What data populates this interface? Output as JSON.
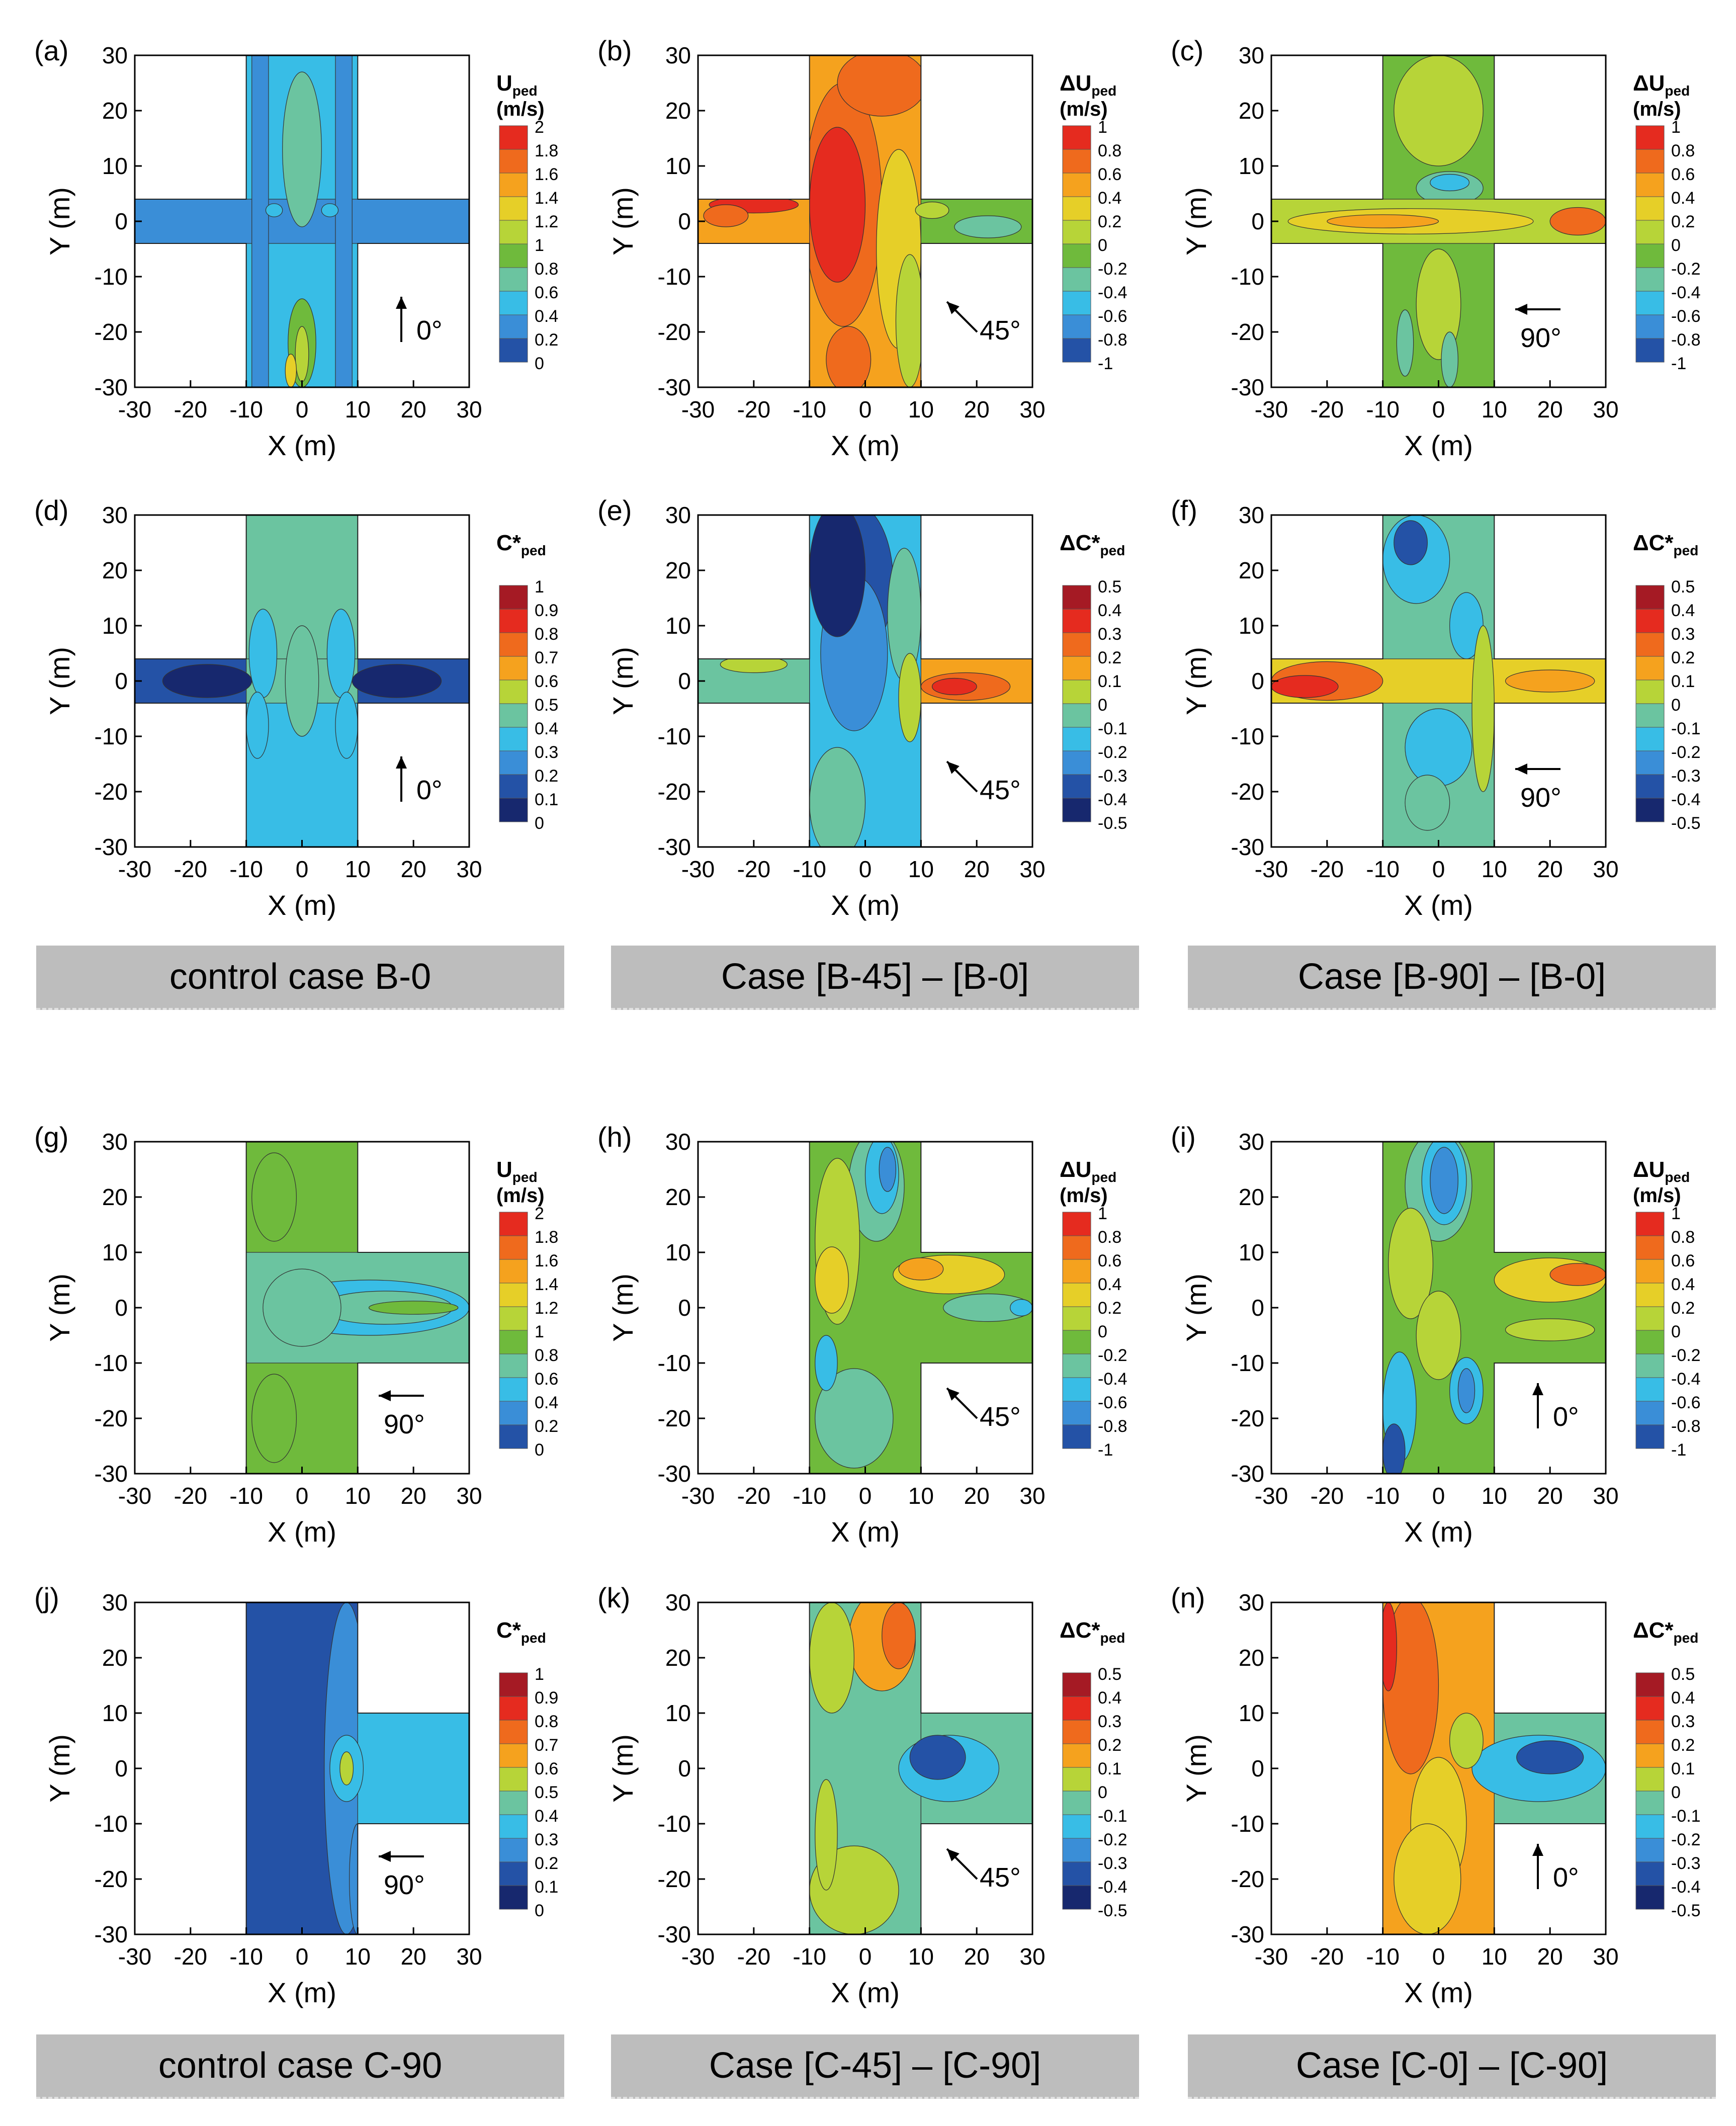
{
  "figure": {
    "panels": [
      {
        "letter": "(a)",
        "mode": "T",
        "legend_kind": "U",
        "legend_title": "U",
        "legend_sub": "ped",
        "legend_units": "(m/s)",
        "legend_levels": [
          "2",
          "1.8",
          "1.6",
          "1.4",
          "1.2",
          "1",
          "0.8",
          "0.6",
          "0.4",
          "0.2",
          "0"
        ],
        "wind_label": "0°",
        "xlabel": "X (m)",
        "ylabel": "Y (m)",
        "x_ticks": [
          "-30",
          "-20",
          "-10",
          "0",
          "10",
          "20",
          "30"
        ],
        "y_ticks": [
          "30",
          "20",
          "10",
          "0",
          "-10",
          "-20",
          "-30"
        ]
      },
      {
        "letter": "(b)",
        "mode": "T",
        "legend_kind": "dU",
        "legend_title": "ΔU",
        "legend_sub": "ped",
        "legend_units": "(m/s)",
        "legend_levels": [
          "1",
          "0.8",
          "0.6",
          "0.4",
          "0.2",
          "0",
          "-0.2",
          "-0.4",
          "-0.6",
          "-0.8",
          "-1"
        ],
        "wind_label": "45°",
        "xlabel": "X (m)",
        "ylabel": "Y (m)",
        "x_ticks": [
          "-30",
          "-20",
          "-10",
          "0",
          "10",
          "20",
          "30"
        ],
        "y_ticks": [
          "30",
          "20",
          "10",
          "0",
          "-10",
          "-20",
          "-30"
        ]
      },
      {
        "letter": "(c)",
        "mode": "T",
        "legend_kind": "dU",
        "legend_title": "ΔU",
        "legend_sub": "ped",
        "legend_units": "(m/s)",
        "legend_levels": [
          "1",
          "0.8",
          "0.6",
          "0.4",
          "0.2",
          "0",
          "-0.2",
          "-0.4",
          "-0.6",
          "-0.8",
          "-1"
        ],
        "wind_label": "90°",
        "xlabel": "X (m)",
        "ylabel": "Y (m)",
        "x_ticks": [
          "-30",
          "-20",
          "-10",
          "0",
          "10",
          "20",
          "30"
        ],
        "y_ticks": [
          "30",
          "20",
          "10",
          "0",
          "-10",
          "-20",
          "-30"
        ]
      },
      {
        "letter": "(d)",
        "mode": "T",
        "legend_kind": "C",
        "legend_title": "C*",
        "legend_sub": "ped",
        "legend_units": "",
        "legend_levels": [
          "1",
          "0.9",
          "0.8",
          "0.7",
          "0.6",
          "0.5",
          "0.4",
          "0.3",
          "0.2",
          "0.1",
          "0"
        ],
        "wind_label": "0°",
        "xlabel": "X (m)",
        "ylabel": "Y (m)",
        "x_ticks": [
          "-30",
          "-20",
          "-10",
          "0",
          "10",
          "20",
          "30"
        ],
        "y_ticks": [
          "30",
          "20",
          "10",
          "0",
          "-10",
          "-20",
          "-30"
        ]
      },
      {
        "letter": "(e)",
        "mode": "T",
        "legend_kind": "dC",
        "legend_title": "ΔC*",
        "legend_sub": "ped",
        "legend_units": "",
        "legend_levels": [
          "0.5",
          "0.4",
          "0.3",
          "0.2",
          "0.1",
          "0",
          "-0.1",
          "-0.2",
          "-0.3",
          "-0.4",
          "-0.5"
        ],
        "wind_label": "45°",
        "xlabel": "X (m)",
        "ylabel": "Y (m)",
        "x_ticks": [
          "-30",
          "-20",
          "-10",
          "0",
          "10",
          "20",
          "30"
        ],
        "y_ticks": [
          "30",
          "20",
          "10",
          "0",
          "-10",
          "-20",
          "-30"
        ]
      },
      {
        "letter": "(f)",
        "mode": "T",
        "legend_kind": "dC",
        "legend_title": "ΔC*",
        "legend_sub": "ped",
        "legend_units": "",
        "legend_levels": [
          "0.5",
          "0.4",
          "0.3",
          "0.2",
          "0.1",
          "0",
          "-0.1",
          "-0.2",
          "-0.3",
          "-0.4",
          "-0.5"
        ],
        "wind_label": "90°",
        "xlabel": "X (m)",
        "ylabel": "Y (m)",
        "x_ticks": [
          "-30",
          "-20",
          "-10",
          "0",
          "10",
          "20",
          "30"
        ],
        "y_ticks": [
          "30",
          "20",
          "10",
          "0",
          "-10",
          "-20",
          "-30"
        ]
      },
      {
        "letter": "(g)",
        "mode": "C",
        "legend_kind": "U",
        "legend_title": "U",
        "legend_sub": "ped",
        "legend_units": "(m/s)",
        "legend_levels": [
          "2",
          "1.8",
          "1.6",
          "1.4",
          "1.2",
          "1",
          "0.8",
          "0.6",
          "0.4",
          "0.2",
          "0"
        ],
        "wind_label": "90°",
        "xlabel": "X (m)",
        "ylabel": "Y (m)",
        "x_ticks": [
          "-30",
          "-20",
          "-10",
          "0",
          "10",
          "20",
          "30"
        ],
        "y_ticks": [
          "30",
          "20",
          "10",
          "0",
          "-10",
          "-20",
          "-30"
        ]
      },
      {
        "letter": "(h)",
        "mode": "C",
        "legend_kind": "dU",
        "legend_title": "ΔU",
        "legend_sub": "ped",
        "legend_units": "(m/s)",
        "legend_levels": [
          "1",
          "0.8",
          "0.6",
          "0.4",
          "0.2",
          "0",
          "-0.2",
          "-0.4",
          "-0.6",
          "-0.8",
          "-1"
        ],
        "wind_label": "45°",
        "xlabel": "X (m)",
        "ylabel": "Y (m)",
        "x_ticks": [
          "-30",
          "-20",
          "-10",
          "0",
          "10",
          "20",
          "30"
        ],
        "y_ticks": [
          "30",
          "20",
          "10",
          "0",
          "-10",
          "-20",
          "-30"
        ]
      },
      {
        "letter": "(i)",
        "mode": "C",
        "legend_kind": "dU",
        "legend_title": "ΔU",
        "legend_sub": "ped",
        "legend_units": "(m/s)",
        "legend_levels": [
          "1",
          "0.8",
          "0.6",
          "0.4",
          "0.2",
          "0",
          "-0.2",
          "-0.4",
          "-0.6",
          "-0.8",
          "-1"
        ],
        "wind_label": "0°",
        "xlabel": "X (m)",
        "ylabel": "Y (m)",
        "x_ticks": [
          "-30",
          "-20",
          "-10",
          "0",
          "10",
          "20",
          "30"
        ],
        "y_ticks": [
          "30",
          "20",
          "10",
          "0",
          "-10",
          "-20",
          "-30"
        ]
      },
      {
        "letter": "(j)",
        "mode": "C",
        "legend_kind": "C",
        "legend_title": "C*",
        "legend_sub": "ped",
        "legend_units": "",
        "legend_levels": [
          "1",
          "0.9",
          "0.8",
          "0.7",
          "0.6",
          "0.5",
          "0.4",
          "0.3",
          "0.2",
          "0.1",
          "0"
        ],
        "wind_label": "90°",
        "xlabel": "X (m)",
        "ylabel": "Y (m)",
        "x_ticks": [
          "-30",
          "-20",
          "-10",
          "0",
          "10",
          "20",
          "30"
        ],
        "y_ticks": [
          "30",
          "20",
          "10",
          "0",
          "-10",
          "-20",
          "-30"
        ]
      },
      {
        "letter": "(k)",
        "mode": "C",
        "legend_kind": "dC",
        "legend_title": "ΔC*",
        "legend_sub": "ped",
        "legend_units": "",
        "legend_levels": [
          "0.5",
          "0.4",
          "0.3",
          "0.2",
          "0.1",
          "0",
          "-0.1",
          "-0.2",
          "-0.3",
          "-0.4",
          "-0.5"
        ],
        "wind_label": "45°",
        "xlabel": "X (m)",
        "ylabel": "Y (m)",
        "x_ticks": [
          "-30",
          "-20",
          "-10",
          "0",
          "10",
          "20",
          "30"
        ],
        "y_ticks": [
          "30",
          "20",
          "10",
          "0",
          "-10",
          "-20",
          "-30"
        ]
      },
      {
        "letter": "(n)",
        "mode": "C",
        "legend_kind": "dC",
        "legend_title": "ΔC*",
        "legend_sub": "ped",
        "legend_units": "",
        "legend_levels": [
          "0.5",
          "0.4",
          "0.3",
          "0.2",
          "0.1",
          "0",
          "-0.1",
          "-0.2",
          "-0.3",
          "-0.4",
          "-0.5"
        ],
        "wind_label": "0°",
        "xlabel": "X (m)",
        "ylabel": "Y (m)",
        "x_ticks": [
          "-30",
          "-20",
          "-10",
          "0",
          "10",
          "20",
          "30"
        ],
        "y_ticks": [
          "30",
          "20",
          "10",
          "0",
          "-10",
          "-20",
          "-30"
        ]
      }
    ],
    "captions": [
      "control case B-0",
      "Case [B-45] – [B-0]",
      "Case [B-90] – [B-0]",
      "control case C-90",
      "Case [C-45] – [C-90]",
      "Case [C-0] – [C-90]"
    ]
  },
  "chart_data": [
    {
      "type": "heatmap",
      "panel": "(a)",
      "title": "control case B-0",
      "variable": "U_ped (m/s)",
      "xlabel": "X (m)",
      "ylabel": "Y (m)",
      "xlim": [
        -30,
        30
      ],
      "ylim": [
        -30,
        30
      ],
      "wind_direction_deg": 0,
      "colorbar_range": [
        0,
        2
      ],
      "features": [
        {
          "x": 0,
          "y": 0,
          "value": 0.6
        },
        {
          "x": 0,
          "y": 15,
          "value": 0.8
        },
        {
          "x": 0,
          "y": -22,
          "value": 1.2
        },
        {
          "x": -25,
          "y": 0,
          "value": 0.4
        },
        {
          "x": 25,
          "y": 0,
          "value": 0.4
        }
      ]
    },
    {
      "type": "heatmap",
      "panel": "(b)",
      "title": "Case [B-45] – [B-0]",
      "variable": "ΔU_ped (m/s)",
      "xlabel": "X (m)",
      "ylabel": "Y (m)",
      "xlim": [
        -30,
        30
      ],
      "ylim": [
        -30,
        30
      ],
      "wind_direction_deg": 45,
      "colorbar_range": [
        -1,
        1
      ],
      "features": [
        {
          "x": -5,
          "y": 2,
          "value": 1.0
        },
        {
          "x": 0,
          "y": 25,
          "value": 0.6
        },
        {
          "x": 5,
          "y": -20,
          "value": 0.4
        },
        {
          "x": -20,
          "y": 3,
          "value": 1.0
        },
        {
          "x": 20,
          "y": -2,
          "value": -0.2
        }
      ]
    },
    {
      "type": "heatmap",
      "panel": "(c)",
      "title": "Case [B-90] – [B-0]",
      "variable": "ΔU_ped (m/s)",
      "xlabel": "X (m)",
      "ylabel": "Y (m)",
      "xlim": [
        -30,
        30
      ],
      "ylim": [
        -30,
        30
      ],
      "wind_direction_deg": 90,
      "colorbar_range": [
        -1,
        1
      ],
      "features": [
        {
          "x": 0,
          "y": 0,
          "value": 0.6
        },
        {
          "x": 25,
          "y": 0,
          "value": 0.8
        },
        {
          "x": 0,
          "y": 8,
          "value": -0.4
        },
        {
          "x": 0,
          "y": 20,
          "value": 0
        },
        {
          "x": 2,
          "y": -25,
          "value": -0.2
        }
      ]
    },
    {
      "type": "heatmap",
      "panel": "(d)",
      "title": "control case B-0",
      "variable": "C*_ped",
      "xlabel": "X (m)",
      "ylabel": "Y (m)",
      "xlim": [
        -30,
        30
      ],
      "ylim": [
        -30,
        30
      ],
      "wind_direction_deg": 0,
      "colorbar_range": [
        0,
        1
      ],
      "features": [
        {
          "x": 0,
          "y": 0,
          "value": 0.45
        },
        {
          "x": -25,
          "y": 0,
          "value": 0.2
        },
        {
          "x": 25,
          "y": 0,
          "value": 0.2
        },
        {
          "x": 0,
          "y": -25,
          "value": 0.35
        }
      ]
    },
    {
      "type": "heatmap",
      "panel": "(e)",
      "title": "Case [B-45] – [B-0]",
      "variable": "ΔC*_ped",
      "xlabel": "X (m)",
      "ylabel": "Y (m)",
      "xlim": [
        -30,
        30
      ],
      "ylim": [
        -30,
        30
      ],
      "wind_direction_deg": 45,
      "colorbar_range": [
        -0.5,
        0.5
      ],
      "features": [
        {
          "x": -3,
          "y": 22,
          "value": -0.4
        },
        {
          "x": -3,
          "y": 0,
          "value": -0.3
        },
        {
          "x": 15,
          "y": 0,
          "value": 0.4
        },
        {
          "x": 0,
          "y": -20,
          "value": -0.1
        },
        {
          "x": -25,
          "y": 0,
          "value": 0.05
        }
      ]
    },
    {
      "type": "heatmap",
      "panel": "(f)",
      "title": "Case [B-90] – [B-0]",
      "variable": "ΔC*_ped",
      "xlabel": "X (m)",
      "ylabel": "Y (m)",
      "xlim": [
        -30,
        30
      ],
      "ylim": [
        -30,
        30
      ],
      "wind_direction_deg": 90,
      "colorbar_range": [
        -0.5,
        0.5
      ],
      "features": [
        {
          "x": -25,
          "y": 0,
          "value": 0.45
        },
        {
          "x": 0,
          "y": 20,
          "value": -0.1
        },
        {
          "x": 20,
          "y": 0,
          "value": 0.15
        },
        {
          "x": 0,
          "y": -20,
          "value": 0
        }
      ]
    },
    {
      "type": "heatmap",
      "panel": "(g)",
      "title": "control case C-90",
      "variable": "U_ped (m/s)",
      "xlabel": "X (m)",
      "ylabel": "Y (m)",
      "xlim": [
        -30,
        30
      ],
      "ylim": [
        -30,
        30
      ],
      "wind_direction_deg": 90,
      "colorbar_range": [
        0,
        2
      ],
      "features": [
        {
          "x": 0,
          "y": 20,
          "value": 1.0
        },
        {
          "x": 0,
          "y": -20,
          "value": 1.0
        },
        {
          "x": 5,
          "y": 0,
          "value": 0.4
        },
        {
          "x": 25,
          "y": 0,
          "value": 1.0
        }
      ]
    },
    {
      "type": "heatmap",
      "panel": "(h)",
      "title": "Case [C-45] – [C-90]",
      "variable": "ΔU_ped (m/s)",
      "xlabel": "X (m)",
      "ylabel": "Y (m)",
      "xlim": [
        -30,
        30
      ],
      "ylim": [
        -30,
        30
      ],
      "wind_direction_deg": 45,
      "colorbar_range": [
        -1,
        1
      ],
      "features": [
        {
          "x": 3,
          "y": 25,
          "value": -0.8
        },
        {
          "x": 15,
          "y": 8,
          "value": 0.6
        },
        {
          "x": 0,
          "y": -20,
          "value": -0.2
        },
        {
          "x": 28,
          "y": 0,
          "value": -0.4
        }
      ]
    },
    {
      "type": "heatmap",
      "panel": "(i)",
      "title": "Case [C-0] – [C-90]",
      "variable": "ΔU_ped (m/s)",
      "xlabel": "X (m)",
      "ylabel": "Y (m)",
      "xlim": [
        -30,
        30
      ],
      "ylim": [
        -30,
        30
      ],
      "wind_direction_deg": 0,
      "colorbar_range": [
        -1,
        1
      ],
      "features": [
        {
          "x": 2,
          "y": 25,
          "value": -0.9
        },
        {
          "x": 25,
          "y": 5,
          "value": 0.7
        },
        {
          "x": 5,
          "y": -15,
          "value": -0.6
        },
        {
          "x": -7,
          "y": -25,
          "value": -0.8
        }
      ]
    },
    {
      "type": "heatmap",
      "panel": "(j)",
      "title": "control case C-90",
      "variable": "C*_ped",
      "xlabel": "X (m)",
      "ylabel": "Y (m)",
      "xlim": [
        -30,
        30
      ],
      "ylim": [
        -30,
        30
      ],
      "wind_direction_deg": 90,
      "colorbar_range": [
        0,
        1
      ],
      "features": [
        {
          "x": -3,
          "y": 0,
          "value": 0.25
        },
        {
          "x": 20,
          "y": 0,
          "value": 0.35
        },
        {
          "x": 8,
          "y": 0,
          "value": 0.45
        }
      ]
    },
    {
      "type": "heatmap",
      "panel": "(k)",
      "title": "Case [C-45] – [C-90]",
      "variable": "ΔC*_ped",
      "xlabel": "X (m)",
      "ylabel": "Y (m)",
      "xlim": [
        -30,
        30
      ],
      "ylim": [
        -30,
        30
      ],
      "wind_direction_deg": 45,
      "colorbar_range": [
        -0.5,
        0.5
      ],
      "features": [
        {
          "x": 5,
          "y": 22,
          "value": 0.25
        },
        {
          "x": 15,
          "y": 2,
          "value": -0.3
        },
        {
          "x": 0,
          "y": -20,
          "value": 0.05
        }
      ]
    },
    {
      "type": "heatmap",
      "panel": "(n)",
      "title": "Case [C-0] – [C-90]",
      "variable": "ΔC*_ped",
      "xlabel": "X (m)",
      "ylabel": "Y (m)",
      "xlim": [
        -30,
        30
      ],
      "ylim": [
        -30,
        30
      ],
      "wind_direction_deg": 0,
      "colorbar_range": [
        -0.5,
        0.5
      ],
      "features": [
        {
          "x": -8,
          "y": 20,
          "value": 0.4
        },
        {
          "x": 0,
          "y": -10,
          "value": 0.2
        },
        {
          "x": 20,
          "y": 2,
          "value": -0.3
        }
      ]
    }
  ]
}
